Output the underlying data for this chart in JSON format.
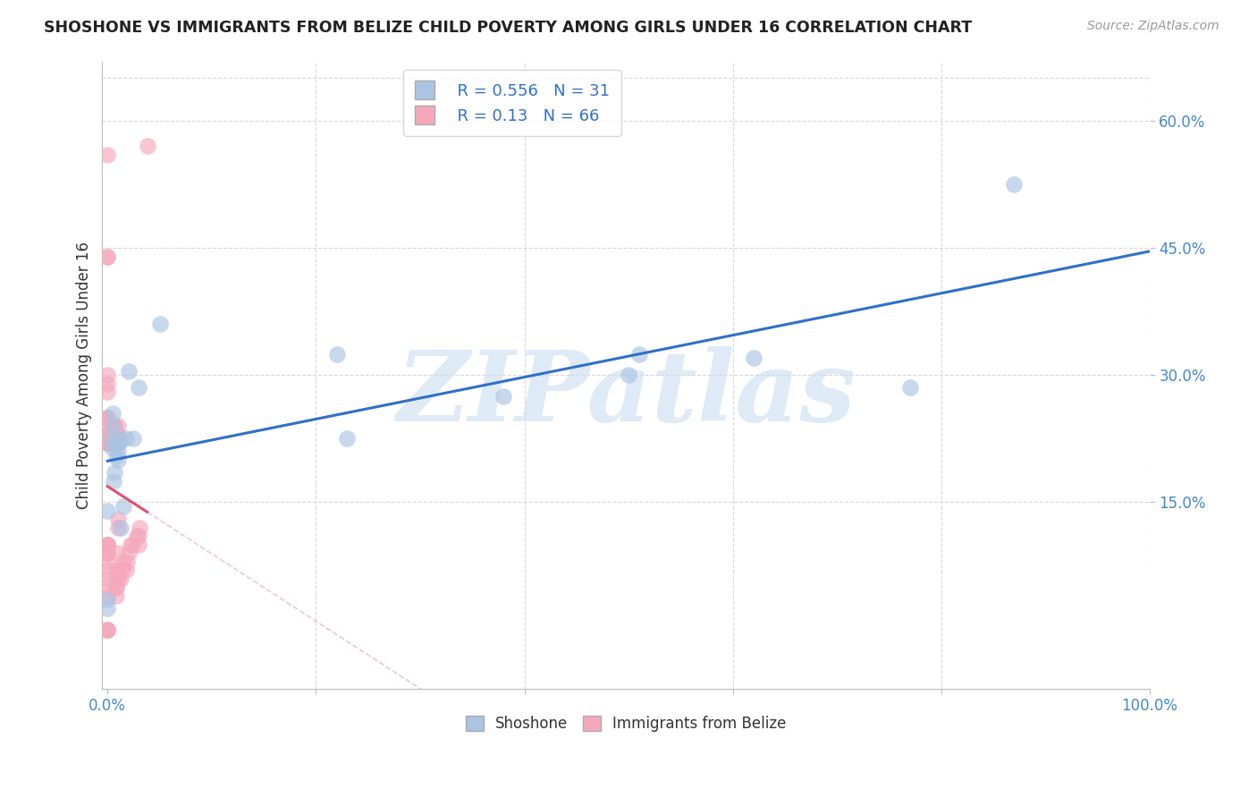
{
  "title": "SHOSHONE VS IMMIGRANTS FROM BELIZE CHILD POVERTY AMONG GIRLS UNDER 16 CORRELATION CHART",
  "source": "Source: ZipAtlas.com",
  "ylabel": "Child Poverty Among Girls Under 16",
  "shoshone_R": 0.556,
  "shoshone_N": 31,
  "belize_R": 0.13,
  "belize_N": 66,
  "shoshone_color": "#aac4e2",
  "belize_color": "#f5a8bc",
  "blue_line_color": "#3070c8",
  "pink_line_color": "#e05070",
  "watermark": "ZIPatlas",
  "watermark_color": "#c8ddf0",
  "shoshone_x": [
    0.0,
    0.0,
    0.0,
    0.004,
    0.004,
    0.005,
    0.005,
    0.006,
    0.007,
    0.008,
    0.009,
    0.01,
    0.01,
    0.01,
    0.011,
    0.012,
    0.013,
    0.015,
    0.018,
    0.02,
    0.025,
    0.03,
    0.05,
    0.22,
    0.23,
    0.38,
    0.5,
    0.51,
    0.62,
    0.77,
    0.87
  ],
  "shoshone_y": [
    0.025,
    0.14,
    0.035,
    0.215,
    0.225,
    0.24,
    0.255,
    0.175,
    0.185,
    0.205,
    0.22,
    0.21,
    0.22,
    0.2,
    0.22,
    0.225,
    0.12,
    0.145,
    0.225,
    0.305,
    0.225,
    0.285,
    0.36,
    0.325,
    0.225,
    0.275,
    0.3,
    0.325,
    0.32,
    0.285,
    0.525
  ],
  "belize_x": [
    0.0,
    0.0,
    0.0,
    0.0,
    0.0,
    0.0,
    0.0,
    0.0,
    0.0,
    0.0,
    0.0,
    0.0,
    0.0,
    0.0,
    0.0,
    0.0,
    0.0,
    0.0,
    0.0,
    0.0,
    0.0,
    0.0,
    0.0,
    0.0,
    0.0,
    0.0,
    0.0,
    0.0,
    0.0,
    0.0,
    0.004,
    0.005,
    0.005,
    0.005,
    0.005,
    0.006,
    0.006,
    0.007,
    0.007,
    0.007,
    0.008,
    0.008,
    0.008,
    0.009,
    0.009,
    0.009,
    0.01,
    0.01,
    0.01,
    0.01,
    0.01,
    0.01,
    0.01,
    0.013,
    0.014,
    0.015,
    0.018,
    0.019,
    0.02,
    0.022,
    0.024,
    0.028,
    0.03,
    0.03,
    0.031,
    0.038
  ],
  "belize_y": [
    0.0,
    0.0,
    0.0,
    0.04,
    0.05,
    0.06,
    0.07,
    0.08,
    0.09,
    0.09,
    0.09,
    0.1,
    0.1,
    0.1,
    0.1,
    0.22,
    0.22,
    0.22,
    0.23,
    0.23,
    0.24,
    0.25,
    0.25,
    0.25,
    0.28,
    0.29,
    0.3,
    0.44,
    0.44,
    0.56,
    0.22,
    0.22,
    0.22,
    0.23,
    0.24,
    0.22,
    0.24,
    0.22,
    0.23,
    0.24,
    0.04,
    0.05,
    0.05,
    0.06,
    0.07,
    0.09,
    0.06,
    0.07,
    0.12,
    0.13,
    0.22,
    0.23,
    0.24,
    0.06,
    0.07,
    0.08,
    0.07,
    0.08,
    0.09,
    0.1,
    0.1,
    0.11,
    0.1,
    0.11,
    0.12,
    0.57
  ],
  "xlim": [
    -0.005,
    1.0
  ],
  "ylim": [
    -0.07,
    0.67
  ],
  "ytick_vals": [
    0.15,
    0.3,
    0.45,
    0.6
  ],
  "ytick_labels": [
    "15.0%",
    "30.0%",
    "45.0%",
    "60.0%"
  ],
  "xtick_vals": [
    0.0,
    0.2,
    0.4,
    0.6,
    0.8,
    1.0
  ],
  "xtick_labels": [
    "0.0%",
    "",
    "",
    "",
    "",
    "100.0%"
  ]
}
